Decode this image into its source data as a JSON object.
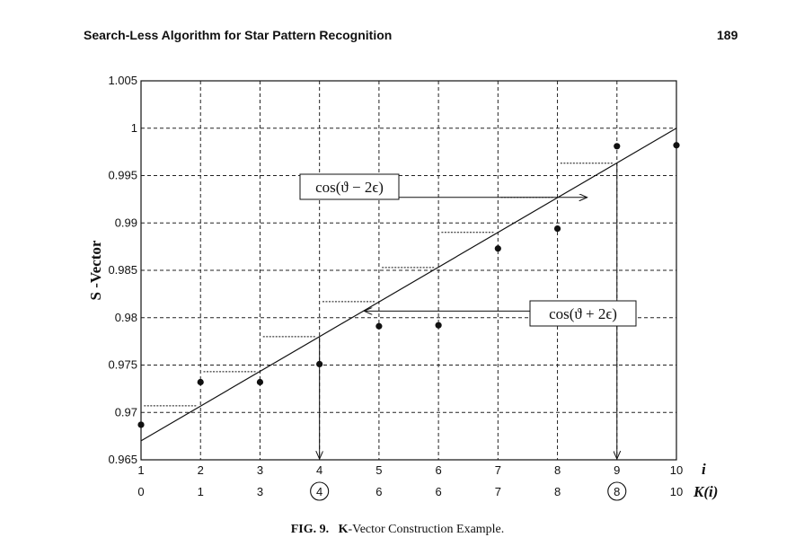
{
  "header": {
    "title": "Search-Less Algorithm for Star Pattern Recognition",
    "page_number": "189"
  },
  "caption": {
    "fig_label": "FIG. 9.",
    "k_letter": "K",
    "text": "-Vector Construction Example."
  },
  "chart_data": {
    "type": "scatter",
    "ylabel": "S -Vector",
    "xlabel_top": "i",
    "xlabel_bottom": "K(i)",
    "xlim": [
      1,
      10
    ],
    "ylim": [
      0.965,
      1.005
    ],
    "grid": true,
    "x_ticks": [
      "1",
      "2",
      "3",
      "4",
      "5",
      "6",
      "7",
      "8",
      "9",
      "10"
    ],
    "k_ticks": [
      "0",
      "1",
      "3",
      "4",
      "6",
      "6",
      "7",
      "8",
      "8",
      "10"
    ],
    "k_circled": [
      4,
      9
    ],
    "y_ticks": [
      {
        "value": 1.005,
        "label": "1.005"
      },
      {
        "value": 1.0,
        "label": "1"
      },
      {
        "value": 0.995,
        "label": "0.995"
      },
      {
        "value": 0.99,
        "label": "0.99"
      },
      {
        "value": 0.985,
        "label": "0.985"
      },
      {
        "value": 0.98,
        "label": "0.98"
      },
      {
        "value": 0.975,
        "label": "0.975"
      },
      {
        "value": 0.97,
        "label": "0.97"
      },
      {
        "value": 0.965,
        "label": "0.965"
      }
    ],
    "points": [
      {
        "x": 1,
        "y": 0.9687
      },
      {
        "x": 2,
        "y": 0.9732
      },
      {
        "x": 3,
        "y": 0.9732
      },
      {
        "x": 4,
        "y": 0.9751
      },
      {
        "x": 5,
        "y": 0.9791
      },
      {
        "x": 6,
        "y": 0.9792
      },
      {
        "x": 7,
        "y": 0.9873
      },
      {
        "x": 8,
        "y": 0.9894
      },
      {
        "x": 9,
        "y": 0.9981
      },
      {
        "x": 10,
        "y": 0.9982
      }
    ],
    "fit_line": {
      "x": [
        1,
        10
      ],
      "y": [
        0.967,
        1.0
      ]
    },
    "dashes": [
      {
        "x": 1.5,
        "y": 0.9707
      },
      {
        "x": 2.5,
        "y": 0.9743
      },
      {
        "x": 3.5,
        "y": 0.978
      },
      {
        "x": 4.5,
        "y": 0.9817
      },
      {
        "x": 5.5,
        "y": 0.9853
      },
      {
        "x": 6.5,
        "y": 0.989
      },
      {
        "x": 7.5,
        "y": 0.9927
      },
      {
        "x": 8.5,
        "y": 0.9963
      }
    ],
    "annotations": [
      {
        "text": "cos(ϑ − 2ϵ)",
        "y": 0.9927,
        "target_x": 8.5,
        "drop_x": 9
      },
      {
        "text": "cos(ϑ + 2ϵ)",
        "y": 0.9807,
        "target_x": 4.75,
        "drop_x": 4
      }
    ]
  }
}
